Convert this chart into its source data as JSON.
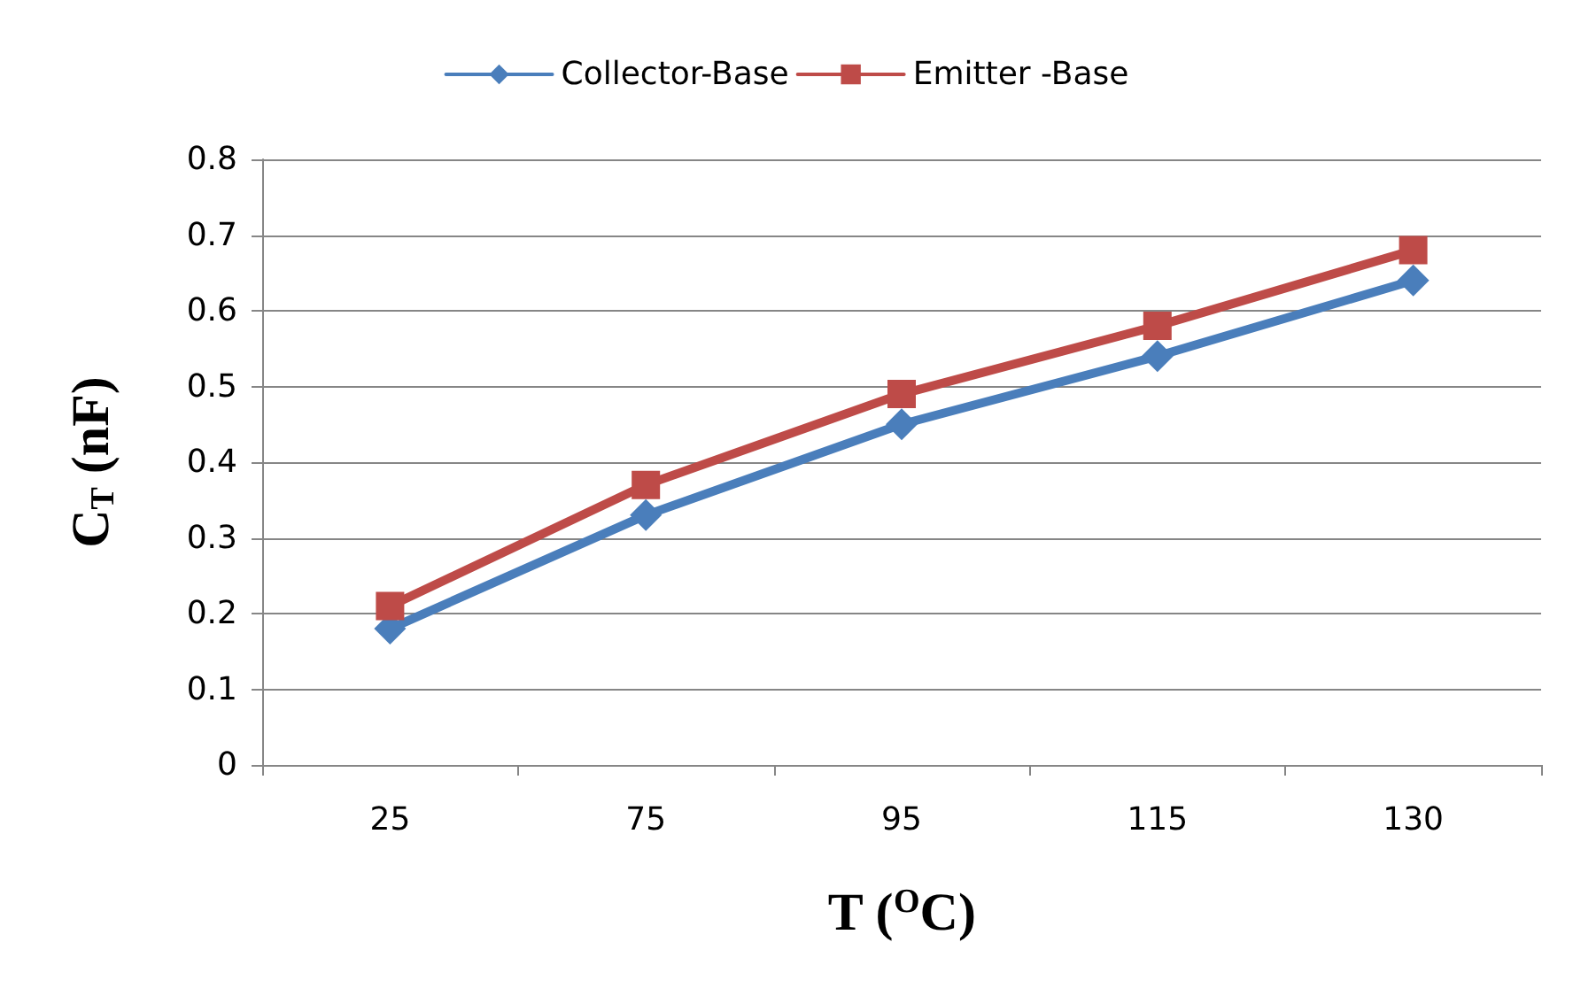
{
  "chart_data": {
    "type": "line",
    "xlabel": "T ($^{O}$C)",
    "ylabel": "C$_{T}$ (nF)",
    "categories": [
      "25",
      "75",
      "95",
      "115",
      "130"
    ],
    "series": [
      {
        "name": "Collector-Base",
        "color": "#4a7ebb",
        "marker": "diamond",
        "values": [
          0.18,
          0.33,
          0.45,
          0.54,
          0.64
        ]
      },
      {
        "name": "Emitter -Base",
        "color": "#be4b48",
        "marker": "square",
        "values": [
          0.21,
          0.37,
          0.49,
          0.58,
          0.68
        ]
      }
    ],
    "ylim": [
      0,
      0.8
    ],
    "yticks": [
      0,
      0.1,
      0.2,
      0.3,
      0.4,
      0.5,
      0.6,
      0.7,
      0.8
    ],
    "grid": "y",
    "legend": "top",
    "line_style": "solid"
  }
}
